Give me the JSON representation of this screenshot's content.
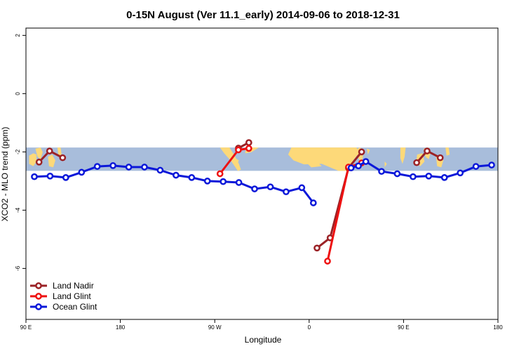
{
  "chart_data": {
    "type": "line",
    "title": "0-15N August (Ver 11.1_early)   2014-09-06 to 2018-12-31",
    "xlabel": "Longitude",
    "ylabel": "XCO2 - MLO trend (ppm)",
    "xlim": [
      90,
      540
    ],
    "ylim": [
      -7.75,
      2.25
    ],
    "x_ticks": [
      {
        "value": 90,
        "label": "90 E"
      },
      {
        "value": 180,
        "label": "180"
      },
      {
        "value": 270,
        "label": "90 W"
      },
      {
        "value": 360,
        "label": "0"
      },
      {
        "value": 450,
        "label": "90 E"
      },
      {
        "value": 540,
        "label": "180"
      }
    ],
    "y_ticks": [
      {
        "value": 2,
        "label": "2"
      },
      {
        "value": 0,
        "label": "0"
      },
      {
        "value": -2,
        "label": "-2"
      },
      {
        "value": -4,
        "label": "-4"
      },
      {
        "value": -6,
        "label": "-6"
      }
    ],
    "map_band": {
      "lat_range": [
        0,
        15
      ],
      "y_range": [
        -2.65,
        -1.85
      ],
      "ocean_color": "#a8bddb",
      "land_color": "#fdd979"
    },
    "legend_position": "bottom-left",
    "series": [
      {
        "name": "Land Nadir",
        "color": "#9b2226",
        "segments": [
          [
            {
              "x": 102.5,
              "y": -2.35
            },
            {
              "x": 112.5,
              "y": -1.97
            },
            {
              "x": 125,
              "y": -2.2
            }
          ],
          [
            {
              "x": 292.5,
              "y": -1.87
            },
            {
              "x": 302.5,
              "y": -1.68
            }
          ],
          [
            {
              "x": 367.5,
              "y": -5.3
            },
            {
              "x": 380,
              "y": -4.95
            },
            {
              "x": 397.5,
              "y": -2.55
            },
            {
              "x": 410,
              "y": -2.0
            }
          ],
          [
            {
              "x": 462.5,
              "y": -2.37
            },
            {
              "x": 472.5,
              "y": -1.97
            },
            {
              "x": 485,
              "y": -2.2
            }
          ]
        ]
      },
      {
        "name": "Land Glint",
        "color": "#ee1111",
        "segments": [
          [
            {
              "x": 275,
              "y": -2.75
            },
            {
              "x": 292.5,
              "y": -1.93
            },
            {
              "x": 302.5,
              "y": -1.88
            }
          ],
          [
            {
              "x": 377.5,
              "y": -5.75
            },
            {
              "x": 397.5,
              "y": -2.52
            },
            {
              "x": 410,
              "y": -2.38
            }
          ]
        ]
      },
      {
        "name": "Ocean Glint",
        "color": "#0b18d9",
        "segments": [
          [
            {
              "x": 98,
              "y": -2.85
            },
            {
              "x": 113,
              "y": -2.83
            },
            {
              "x": 128,
              "y": -2.88
            },
            {
              "x": 143,
              "y": -2.7
            },
            {
              "x": 158,
              "y": -2.5
            },
            {
              "x": 173,
              "y": -2.47
            },
            {
              "x": 188,
              "y": -2.52
            },
            {
              "x": 203,
              "y": -2.52
            },
            {
              "x": 218,
              "y": -2.63
            },
            {
              "x": 233,
              "y": -2.8
            },
            {
              "x": 248,
              "y": -2.88
            },
            {
              "x": 263,
              "y": -3.0
            },
            {
              "x": 278,
              "y": -3.02
            },
            {
              "x": 293,
              "y": -3.05
            },
            {
              "x": 308,
              "y": -3.27
            },
            {
              "x": 323,
              "y": -3.2
            },
            {
              "x": 338,
              "y": -3.37
            },
            {
              "x": 353,
              "y": -3.23
            },
            {
              "x": 364,
              "y": -3.75
            }
          ],
          [
            {
              "x": 400,
              "y": -2.55
            },
            {
              "x": 407,
              "y": -2.48
            },
            {
              "x": 414,
              "y": -2.33
            },
            {
              "x": 429,
              "y": -2.67
            },
            {
              "x": 444,
              "y": -2.75
            },
            {
              "x": 459,
              "y": -2.85
            },
            {
              "x": 474,
              "y": -2.83
            },
            {
              "x": 489,
              "y": -2.88
            },
            {
              "x": 504,
              "y": -2.72
            },
            {
              "x": 519,
              "y": -2.5
            },
            {
              "x": 534,
              "y": -2.45
            }
          ]
        ]
      }
    ]
  }
}
